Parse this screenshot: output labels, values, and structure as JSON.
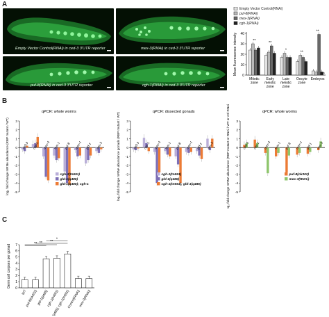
{
  "panels": {
    "a": "A",
    "b": "B",
    "c": "C"
  },
  "micrographs": [
    {
      "caption": "Empty Vector Control(RNAi) in ced-3 3'UTR reporter",
      "prefix": "",
      "rest": ""
    },
    {
      "caption": "",
      "prefix": "mex-3(RNAi)",
      "rest": " in ced-3 3'UTR reporter"
    },
    {
      "caption": "",
      "prefix": "puf-8(RNAi)",
      "rest": " in ced-3 3'UTR reporter"
    },
    {
      "caption": "",
      "prefix": "cgh-1(RNAi)",
      "rest": " in ced-3 3'UTR reporter"
    }
  ],
  "colors": {
    "control": "#e3e3e3",
    "puf8": "#b9b9b9",
    "mex3": "#686868",
    "cgh1": "#222222",
    "orange": "#ec7b35",
    "lavender": "#b9aed8",
    "purple": "#7d6fb6",
    "green": "#8ec56b"
  },
  "chart_data": [
    {
      "type": "bar",
      "categories": [
        "Mitotic zone",
        "Early meiotic zone",
        "Late meiotic zone",
        "Oocyte zone",
        "Embryos"
      ],
      "ylabel": "Mean fluorescence intensity",
      "ylim": [
        0,
        40
      ],
      "yticks": [
        0,
        10,
        20,
        30,
        40
      ],
      "series": [
        {
          "name": "Empty Vector Control(RNAi)",
          "values": [
            24,
            19,
            17,
            13,
            4
          ]
        },
        {
          "name": "puf-8(RNAi)",
          "values": [
            30,
            22,
            21,
            19,
            3
          ]
        },
        {
          "name": "mex-3(RNAi)",
          "values": [
            24,
            28,
            17,
            17,
            39
          ]
        },
        {
          "name": "cgh-1(RNAi)",
          "values": [
            26,
            21,
            17,
            13,
            3
          ]
        }
      ],
      "annotations": [
        "**",
        "**",
        "*",
        "**",
        "**"
      ],
      "annot_text": {
        "na": "n/a"
      }
    },
    {
      "type": "bar",
      "title": "qPCR: whole worms",
      "categories": [
        "ced-3",
        "cep-1",
        "mex-3",
        "hus-1",
        "puf-8",
        "mex-1",
        "gld-1",
        "nos-3"
      ],
      "ylabel": "log₂ fold change mRNA abundance (RBP mutant / WT)",
      "ylim": [
        -5,
        3
      ],
      "yticks": [
        -5,
        -4,
        -3,
        -2,
        -1,
        0,
        1,
        2,
        3
      ],
      "series": [
        {
          "name": "cgh-1(tn691)",
          "values": [
            -0.2,
            0.4,
            -1.0,
            -0.9,
            -2.7,
            -0.3,
            -1.8,
            -0.4
          ]
        },
        {
          "name": "gld-1(q485)",
          "values": [
            -0.4,
            0.5,
            -3.3,
            -1.4,
            -4.0,
            -1.0,
            -1.4,
            -0.6
          ]
        },
        {
          "name": "gld-1(q485); cgh-1",
          "values": [
            0.2,
            1.2,
            -3.7,
            -1.2,
            -4.2,
            -0.9,
            -0.9,
            -0.2
          ]
        }
      ]
    },
    {
      "type": "bar",
      "title": "qPCR: dissected gonads",
      "categories": [
        "ced-3",
        "cep-1",
        "mex-3",
        "hus-1",
        "puf-8",
        "mex-1",
        "gld-1",
        "nos-3"
      ],
      "ylabel": "log₂ fold change mRNA abundance gonads (RBP mutant / WT)",
      "ylim": [
        -5,
        3
      ],
      "yticks": [
        -5,
        -4,
        -3,
        -2,
        -1,
        0,
        1,
        2,
        3
      ],
      "series": [
        {
          "name": "cgh-1(tn691)",
          "values": [
            -0.2,
            1.1,
            -0.5,
            -0.4,
            -1.0,
            -0.5,
            -0.4,
            1.0
          ]
        },
        {
          "name": "gld-1(q485)",
          "values": [
            -0.3,
            0.5,
            -4.0,
            -0.8,
            -1.9,
            -0.6,
            -0.9,
            -0.3
          ]
        },
        {
          "name": "cgh-1(tn691); gld-1(q485)",
          "values": [
            -0.1,
            -0.4,
            -2.8,
            -1.0,
            -4.0,
            -0.5,
            -1.3,
            1.0
          ]
        }
      ]
    },
    {
      "type": "bar",
      "title": "qPCR: whole worms",
      "categories": [
        "ced-3",
        "cep-1",
        "mex-3",
        "hus-1",
        "puf-8",
        "mex-1",
        "gld-1",
        "nos-3"
      ],
      "ylabel": "log₂ fold change mRNA abundance (RBP mutant or RNAi / WT or ctrl RNAi)",
      "ylim": [
        -5,
        3
      ],
      "yticks": [
        -5,
        -4,
        -3,
        -2,
        -1,
        0,
        1,
        2,
        3
      ],
      "series": [
        {
          "name": "puf-8(ok302)",
          "values": [
            0.3,
            0.9,
            -0.6,
            -1.0,
            -2.8,
            -0.8,
            -0.7,
            -0.3
          ]
        },
        {
          "name": "mex-3(RNAi)",
          "values": [
            0.5,
            0.5,
            -2.9,
            -0.6,
            -0.9,
            -0.6,
            -0.5,
            0.7
          ]
        }
      ]
    },
    {
      "type": "bar",
      "categories": [
        "WT",
        "puf-8(ok302)",
        "gld-1(q485)",
        "cgh-1(tn691)",
        "gld-1(q485); cgh-1(tn691)",
        "Control(RNAi)",
        "mex-3(RNAi)"
      ],
      "ylabel": "Germ cell corpses per gonad",
      "ylim": [
        0,
        7
      ],
      "yticks": [
        0,
        1,
        2,
        3,
        4,
        5,
        6,
        7
      ],
      "values": [
        1.3,
        1.3,
        4.7,
        4.8,
        5.5,
        1.5,
        1.5
      ],
      "annotations": [
        "**",
        "**",
        "**",
        "*"
      ]
    }
  ]
}
